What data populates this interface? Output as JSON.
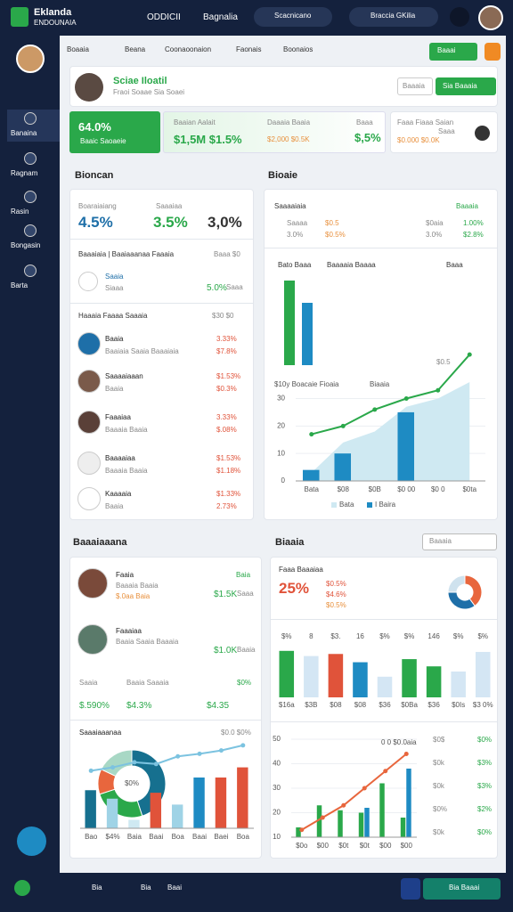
{
  "header": {
    "logo_top": "Eklanda",
    "logo_bottom": "ENDOUNAIA",
    "brand": "ODDICII",
    "menu": "Bagnalia",
    "search": "Scacnicano",
    "account": "Braccia GKilia"
  },
  "sidebar": [
    "Banaina",
    "Ragnam",
    "Rasin",
    "Bongasin",
    "Barta"
  ],
  "tabs": [
    "Boaaia",
    "Beana",
    "Coonaoonaion",
    "Faonais",
    "Boonaios"
  ],
  "tab_action": "Baaai",
  "profile": {
    "name": "Sciae Iloatil",
    "subtitle": "Fraoi Soaae Sia Soaei",
    "button": "Baaaia",
    "button_primary": "Sia Baaaia"
  },
  "kpis": {
    "k1_value": "64.0%",
    "k1_label": "Baaic Saoaeie",
    "k2_title": "Baaian Aalait",
    "k2_value": "$1,5M $1.5%",
    "k3_title": "Daaaia Baaia",
    "k3_value": "$2,000 $0.5K",
    "k3_note": "Baaa",
    "k3_big": "$,5%",
    "k4_title": "Faaa Fiaaa Saian",
    "k4_value": "$0.000 $0.0K",
    "k4_note": "Saaa"
  },
  "left_panel": {
    "title": "Bioncan",
    "stat_labels": [
      "Boaraiaiang",
      "Saaaiaa"
    ],
    "stat_values": [
      "4.5%",
      "3.5%",
      "3,0%"
    ],
    "section": "Baaaiaia | Baaiaaanaa Faaaia",
    "section_note": "Baaa $0",
    "item": {
      "name": "Saaia",
      "sub": "Siaaa",
      "value": "5.0%",
      "note": "Saaa"
    },
    "list_title": "Haaaia Faaaa Saaaia",
    "list_note": "$30 $0",
    "people": [
      {
        "name": "Baaia",
        "sub": "Baaiaia Saaia Baaaiaia",
        "v1": "3.33%",
        "v2": "$7.8%"
      },
      {
        "name": "Saaaaiaaan",
        "sub": "Baaia",
        "v1": "$1.53%",
        "v2": "$0.3%"
      },
      {
        "name": "Faaaiaa",
        "sub": "Baaaia Baaia",
        "v1": "3.33%",
        "v2": "$.08%"
      },
      {
        "name": "Baaaaiaa",
        "sub": "Baaaia Baaia",
        "v1": "$1.53%",
        "v2": "$1.18%"
      },
      {
        "name": "Kaaaaia",
        "sub": "Baaia",
        "v1": "$1.33%",
        "v2": "2.73%"
      }
    ]
  },
  "right_panel": {
    "title": "Bioaie",
    "sub": "Saaaaiaia",
    "sub_note": "Baaaia",
    "cells": [
      [
        "Saaaa",
        "3.0%"
      ],
      [
        "$0.5",
        "$0.5%"
      ],
      [
        "$0aia",
        "3.0%"
      ],
      [
        "1.00%",
        "$2.8%"
      ]
    ],
    "legend": [
      "Bato Baaa",
      "Baaaaia Baaaa",
      "Baaa"
    ],
    "note": "$0.5"
  },
  "left_bottom": {
    "title": "Baaaiaaana",
    "people": [
      {
        "name": "Faaia",
        "sub": "Baaaia Baaia",
        "note": "$.0aa Baia",
        "tag": "Baia",
        "value": "$1.5K",
        "value_note": "Saaa"
      },
      {
        "name": "Faaaiaa",
        "sub": "Baaia Saaia Baaaia",
        "value": "$1.0K",
        "value_note": "Baaia"
      }
    ],
    "stats": [
      {
        "label": "Saaia",
        "value": "$.590%"
      },
      {
        "label": "Baaia Saaaia",
        "value": "$4.3%"
      },
      {
        "label": "$0%",
        "value": "$4.35"
      }
    ],
    "chart_title": "Saaaiaaanaa",
    "chart_note": "$0.0 $0%"
  },
  "right_bottom": {
    "title": "Biaaia",
    "dropdown": "Baaaia",
    "kpi_label": "Faaa Baaaiaa",
    "kpi_value": "25%",
    "kpi_notes": [
      "$0.5%",
      "$4.6%",
      "$0.5%"
    ],
    "side_list": [
      [
        "$0$",
        "$0%"
      ],
      [
        "$0k",
        "$3%"
      ],
      [
        "$0k",
        "$3%"
      ],
      [
        "$0%",
        "$2%"
      ],
      [
        "$0k",
        "$0%"
      ]
    ]
  },
  "bottom_bar": {
    "items": [
      "Bia",
      "Bia",
      "Baai"
    ],
    "button": "Bia Baaai"
  },
  "chart_data": [
    {
      "type": "combo",
      "title": "$10y Boacaie Fioaia",
      "subtitle": "Biaaia",
      "categories": [
        "Bata",
        "$08",
        "$0B",
        "$0 00",
        "$0 0",
        "$0ta"
      ],
      "series": [
        {
          "name": "Bata",
          "type": "area",
          "color": "#cfe9f2",
          "values": [
            3,
            14,
            18,
            27,
            30,
            36
          ]
        },
        {
          "name": "I Baira",
          "type": "bar",
          "color": "#1e8bc3",
          "values": [
            4,
            10,
            0,
            25,
            0,
            0
          ]
        },
        {
          "type": "line",
          "color": "#2aa84a",
          "values": [
            17,
            20,
            26,
            30,
            33,
            46
          ]
        }
      ],
      "ylim": [
        0,
        48
      ],
      "yticks": [
        0,
        10,
        20,
        30
      ]
    },
    {
      "type": "bar",
      "categories": [
        null,
        null
      ],
      "values": [
        95,
        70
      ],
      "colors": [
        "#2aa84a",
        "#1e8bc3"
      ],
      "ylim": [
        0,
        100
      ]
    },
    {
      "type": "bar",
      "categories": [
        "$16a",
        "$3B",
        "$08",
        "$08",
        "$36",
        "$0Ba",
        "$36",
        "$0Is",
        "$3 0%"
      ],
      "values": [
        45,
        40,
        42,
        34,
        20,
        37,
        30,
        25,
        44
      ],
      "colors": [
        "#2aa84a",
        "#d4e6f4",
        "#e0533a",
        "#1e8bc3",
        "#d4e6f4",
        "#2aa84a",
        "#2aa84a",
        "#d4e6f4",
        "#d4e6f4"
      ],
      "annotations": [
        "$%",
        "8",
        "$3.",
        "16",
        "$%",
        "$%",
        "146",
        "$%",
        "$%"
      ],
      "ylim": [
        0,
        50
      ]
    },
    {
      "type": "combo",
      "annotation": "0 0 $0.0aia",
      "categories": [
        "$0o",
        "$00",
        "$0t",
        "$0t",
        "$00",
        "$00"
      ],
      "series": [
        {
          "type": "bar",
          "color": "#2aa84a",
          "values": [
            14,
            23,
            21,
            20,
            32,
            18
          ]
        },
        {
          "type": "bar",
          "color": "#1e8bc3",
          "values": [
            10,
            10,
            10,
            22,
            10,
            38
          ]
        },
        {
          "type": "line",
          "color": "#e8663d",
          "values": [
            13,
            18,
            23,
            30,
            37,
            44
          ]
        }
      ],
      "ylim": [
        10,
        50
      ],
      "yticks": [
        10,
        20,
        30,
        40,
        50
      ]
    },
    {
      "type": "pie",
      "donut": true,
      "values": [
        40,
        35,
        25
      ],
      "colors": [
        "#e8663d",
        "#1e6fa8",
        "#cfe2ee"
      ]
    },
    {
      "type": "pie",
      "donut": true,
      "center_label": "$0%",
      "values": [
        45,
        25,
        12,
        18
      ],
      "colors": [
        "#16708f",
        "#2aa84a",
        "#e8663d",
        "#a8d8c5"
      ]
    },
    {
      "type": "combo",
      "categories": [
        "Bao",
        "$4%",
        "Baia",
        "Baai",
        "Boa",
        "Baai",
        "Baei",
        "Boa"
      ],
      "series": [
        {
          "type": "bar",
          "colors": [
            "#16708f",
            "#9fd3e6",
            "#cfe9f2",
            "#e0533a",
            "#9fd3e6",
            "#1e8bc3",
            "#e0533a",
            "#e0533a"
          ],
          "values": [
            45,
            35,
            10,
            42,
            28,
            60,
            60,
            72
          ]
        },
        {
          "type": "line",
          "color": "#7cc3e0",
          "values": [
            68,
            72,
            78,
            76,
            85,
            88,
            92,
            98
          ]
        }
      ],
      "ylim": [
        0,
        100
      ]
    }
  ]
}
